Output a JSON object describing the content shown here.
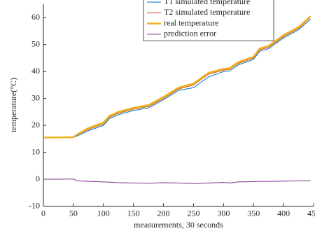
{
  "chart_data": {
    "type": "line",
    "xlabel": "measurements, 30 seconds",
    "ylabel": "temperature(°C)",
    "x": [
      0,
      25,
      50,
      55,
      75,
      100,
      110,
      125,
      150,
      175,
      200,
      225,
      250,
      275,
      300,
      310,
      325,
      350,
      360,
      375,
      400,
      425,
      445
    ],
    "series": [
      {
        "name": "T1 simulated temperature",
        "color": "#0072bd",
        "width": 1,
        "values": [
          15.5,
          15.5,
          15.5,
          16,
          18,
          20,
          22.5,
          24,
          25.5,
          26.5,
          29.5,
          33,
          34,
          38,
          40,
          40.2,
          42.5,
          44.5,
          47.5,
          48.5,
          52.5,
          55.5,
          59.5
        ]
      },
      {
        "name": "T2 simulated temperature",
        "color": "#d95319",
        "width": 1,
        "values": [
          15.5,
          15.5,
          15.6,
          16.3,
          18.5,
          20.5,
          23,
          24.5,
          26,
          27,
          30,
          33.5,
          35,
          39,
          40.5,
          40.8,
          43,
          45,
          48,
          49,
          53,
          56,
          60.2
        ]
      },
      {
        "name": "real temperature",
        "color": "#edb120",
        "width": 2.5,
        "values": [
          15.5,
          15.5,
          15.6,
          16.5,
          19,
          21,
          23.5,
          25,
          26.5,
          27.5,
          30.5,
          34,
          35.5,
          39.5,
          41,
          41.2,
          43.5,
          45.5,
          48.5,
          49.5,
          53.5,
          56.5,
          60.5
        ]
      },
      {
        "name": "prediction error",
        "color": "#7e2f8e",
        "width": 1,
        "values": [
          0,
          0,
          0.1,
          -0.5,
          -0.8,
          -1,
          -1.1,
          -1.3,
          -1.4,
          -1.5,
          -1.3,
          -1.4,
          -1.6,
          -1.4,
          -1.2,
          -1.4,
          -1,
          -0.9,
          -0.8,
          -0.8,
          -0.7,
          -0.6,
          -0.5
        ]
      }
    ],
    "xlim": [
      0,
      450
    ],
    "xticks": [
      0,
      50,
      100,
      150,
      200,
      250,
      300,
      350,
      400,
      450
    ],
    "ylim": [
      -10,
      65
    ],
    "yticks": [
      -10,
      0,
      10,
      20,
      30,
      40,
      50,
      60
    ],
    "grid": false,
    "legend": "top"
  }
}
